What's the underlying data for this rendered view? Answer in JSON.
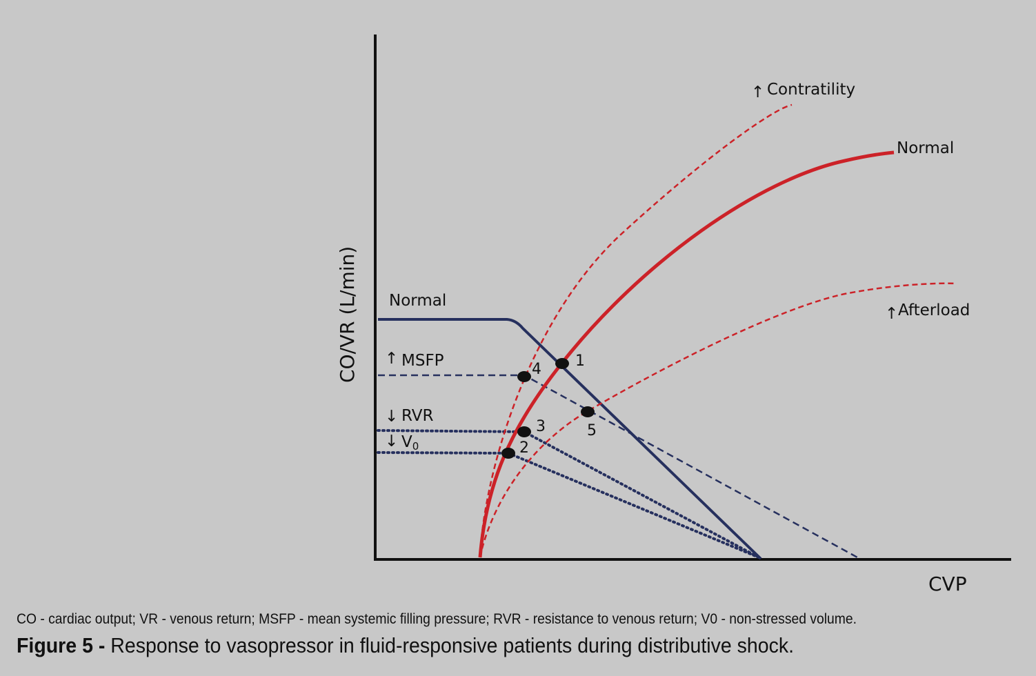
{
  "axes": {
    "y_title": "CO/VR (L/min)",
    "x_title": "CVP"
  },
  "cardiac_curves": {
    "contractility_label": "Contratility",
    "normal_label": "Normal",
    "afterload_label": "Afterload",
    "arrow_symbol": "↑"
  },
  "venous_return": {
    "normal_label": "Normal",
    "msfp_label": "MSFP",
    "rvr_label": "RVR",
    "v0_label": "V",
    "v0_subscript": "0",
    "up_arrow": "↑",
    "down_arrow": "↓"
  },
  "points": [
    "1",
    "2",
    "3",
    "4",
    "5"
  ],
  "colors": {
    "cardiac": "#cc2228",
    "venous": "#26305e",
    "axis": "#111111",
    "background": "#c8c8c8"
  },
  "caption": {
    "abbreviations": "CO - cardiac output; VR - venous return; MSFP - mean systemic filling pressure; RVR - resistance to venous return; V0 - non-stressed volume.",
    "figure_label": "Figure 5 -",
    "figure_text": " Response to vasopressor in fluid-responsive patients during distributive shock."
  }
}
